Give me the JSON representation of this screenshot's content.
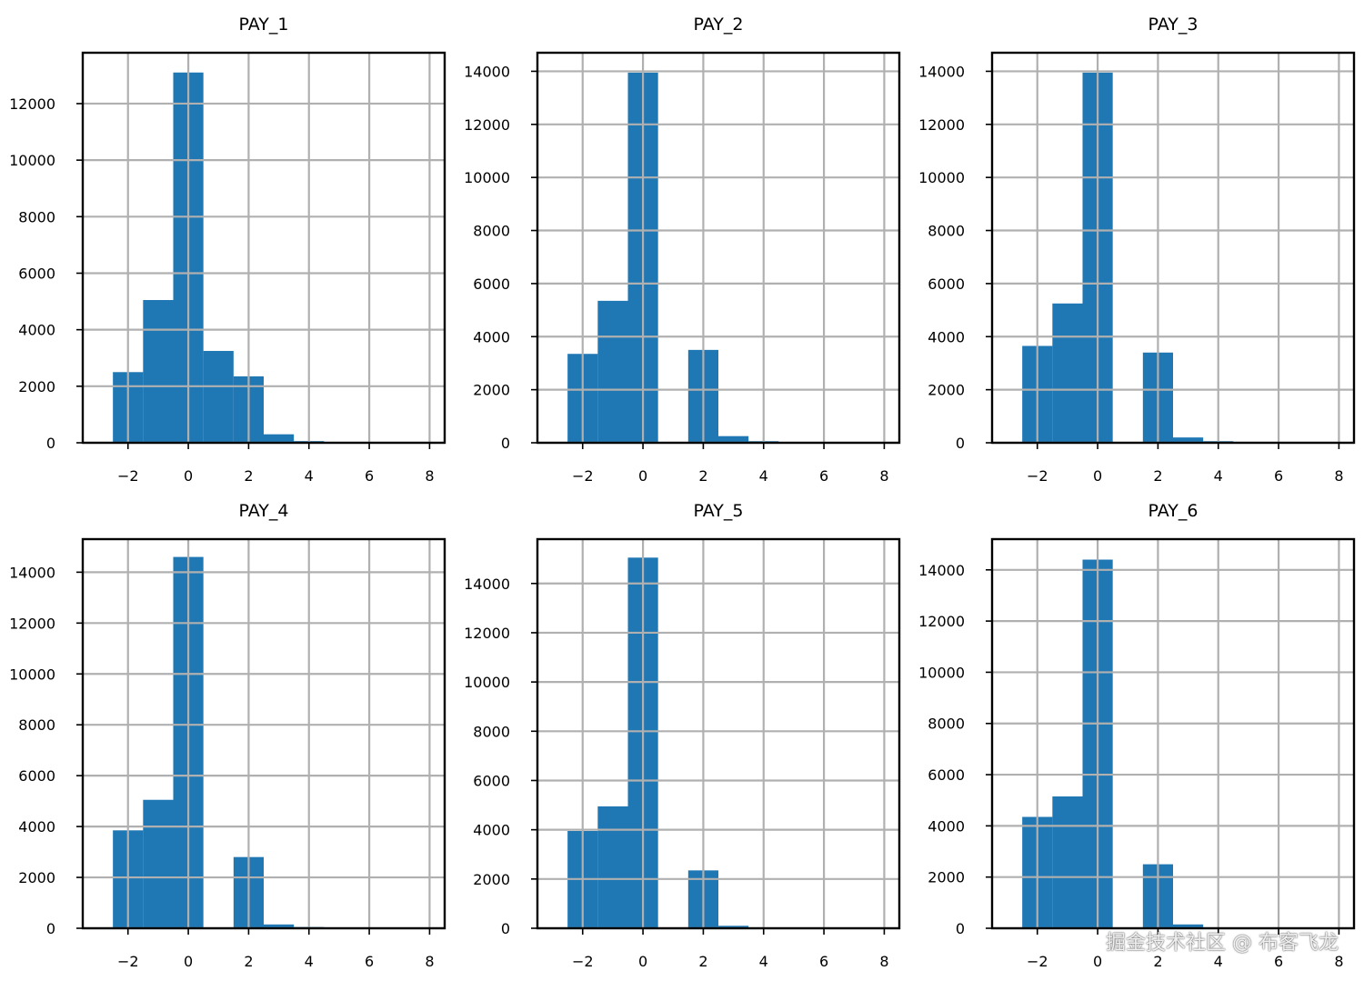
{
  "colors": {
    "bar": "#1f77b4",
    "grid": "#b0b0b0",
    "axes": "#000000"
  },
  "watermark": "掘金技术社区 @ 布客飞龙",
  "chart_data": [
    {
      "type": "bar",
      "title": "PAY_1",
      "bin_edges": [
        -2,
        -1,
        0,
        1,
        2,
        3,
        4,
        5,
        6,
        7,
        8
      ],
      "values": [
        2500,
        5050,
        13100,
        3250,
        2350,
        300,
        60,
        20,
        15,
        10
      ],
      "xlim": [
        -3.5,
        8.5
      ],
      "ylim": [
        0,
        13800
      ],
      "xticks": [
        -2,
        0,
        2,
        4,
        6,
        8
      ],
      "xtick_labels": [
        "−2",
        "0",
        "2",
        "4",
        "6",
        "8"
      ],
      "yticks": [
        0,
        2000,
        4000,
        6000,
        8000,
        10000,
        12000
      ],
      "ytick_labels": [
        "0",
        "2000",
        "4000",
        "6000",
        "8000",
        "10000",
        "12000"
      ],
      "grid": true
    },
    {
      "type": "bar",
      "title": "PAY_2",
      "bin_edges": [
        -2,
        -1,
        0,
        1,
        2,
        3,
        4,
        5,
        6,
        7,
        8
      ],
      "values": [
        3350,
        5350,
        13950,
        0,
        3500,
        250,
        60,
        20,
        10,
        10
      ],
      "xlim": [
        -3.5,
        8.5
      ],
      "ylim": [
        0,
        14700
      ],
      "xticks": [
        -2,
        0,
        2,
        4,
        6,
        8
      ],
      "xtick_labels": [
        "−2",
        "0",
        "2",
        "4",
        "6",
        "8"
      ],
      "yticks": [
        0,
        2000,
        4000,
        6000,
        8000,
        10000,
        12000,
        14000
      ],
      "ytick_labels": [
        "0",
        "2000",
        "4000",
        "6000",
        "8000",
        "10000",
        "12000",
        "14000"
      ],
      "grid": true
    },
    {
      "type": "bar",
      "title": "PAY_3",
      "bin_edges": [
        -2,
        -1,
        0,
        1,
        2,
        3,
        4,
        5,
        6,
        7,
        8
      ],
      "values": [
        3650,
        5250,
        13950,
        0,
        3400,
        200,
        60,
        20,
        10,
        10
      ],
      "xlim": [
        -3.5,
        8.5
      ],
      "ylim": [
        0,
        14700
      ],
      "xticks": [
        -2,
        0,
        2,
        4,
        6,
        8
      ],
      "xtick_labels": [
        "−2",
        "0",
        "2",
        "4",
        "6",
        "8"
      ],
      "yticks": [
        0,
        2000,
        4000,
        6000,
        8000,
        10000,
        12000,
        14000
      ],
      "ytick_labels": [
        "0",
        "2000",
        "4000",
        "6000",
        "8000",
        "10000",
        "12000",
        "14000"
      ],
      "grid": true
    },
    {
      "type": "bar",
      "title": "PAY_4",
      "bin_edges": [
        -2,
        -1,
        0,
        1,
        2,
        3,
        4,
        5,
        6,
        7,
        8
      ],
      "values": [
        3850,
        5050,
        14600,
        0,
        2800,
        150,
        50,
        20,
        10,
        10
      ],
      "xlim": [
        -3.5,
        8.5
      ],
      "ylim": [
        0,
        15300
      ],
      "xticks": [
        -2,
        0,
        2,
        4,
        6,
        8
      ],
      "xtick_labels": [
        "−2",
        "0",
        "2",
        "4",
        "6",
        "8"
      ],
      "yticks": [
        0,
        2000,
        4000,
        6000,
        8000,
        10000,
        12000,
        14000
      ],
      "ytick_labels": [
        "0",
        "2000",
        "4000",
        "6000",
        "8000",
        "10000",
        "12000",
        "14000"
      ],
      "grid": true
    },
    {
      "type": "bar",
      "title": "PAY_5",
      "bin_edges": [
        -2,
        -1,
        0,
        1,
        2,
        3,
        4,
        5,
        6,
        7,
        8
      ],
      "values": [
        3950,
        4950,
        15050,
        0,
        2350,
        100,
        30,
        20,
        10,
        10
      ],
      "xlim": [
        -3.5,
        8.5
      ],
      "ylim": [
        0,
        15800
      ],
      "xticks": [
        -2,
        0,
        2,
        4,
        6,
        8
      ],
      "xtick_labels": [
        "−2",
        "0",
        "2",
        "4",
        "6",
        "8"
      ],
      "yticks": [
        0,
        2000,
        4000,
        6000,
        8000,
        10000,
        12000,
        14000
      ],
      "ytick_labels": [
        "0",
        "2000",
        "4000",
        "6000",
        "8000",
        "10000",
        "12000",
        "14000"
      ],
      "grid": true
    },
    {
      "type": "bar",
      "title": "PAY_6",
      "bin_edges": [
        -2,
        -1,
        0,
        1,
        2,
        3,
        4,
        5,
        6,
        7,
        8
      ],
      "values": [
        4350,
        5150,
        14400,
        0,
        2500,
        150,
        30,
        20,
        10,
        10
      ],
      "xlim": [
        -3.5,
        8.5
      ],
      "ylim": [
        0,
        15200
      ],
      "xticks": [
        -2,
        0,
        2,
        4,
        6,
        8
      ],
      "xtick_labels": [
        "−2",
        "0",
        "2",
        "4",
        "6",
        "8"
      ],
      "yticks": [
        0,
        2000,
        4000,
        6000,
        8000,
        10000,
        12000,
        14000
      ],
      "ytick_labels": [
        "0",
        "2000",
        "4000",
        "6000",
        "8000",
        "10000",
        "12000",
        "14000"
      ],
      "grid": true
    }
  ]
}
